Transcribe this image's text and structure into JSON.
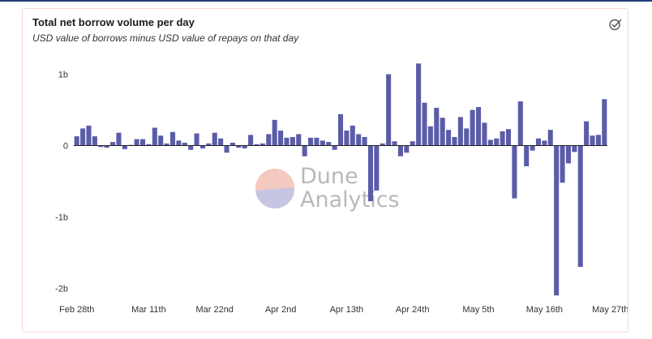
{
  "chart_data": {
    "type": "bar",
    "title": "Total net borrow volume per day",
    "subtitle": "USD value of borrows minus USD value of repays on that day",
    "bar_color": "#5b5ca8",
    "ylim": [
      -2.1,
      1.1
    ],
    "y_ticks": [
      {
        "value": 1,
        "label": "1b"
      },
      {
        "value": 0,
        "label": "0"
      },
      {
        "value": -1,
        "label": "-1b"
      },
      {
        "value": -2,
        "label": "-2b"
      }
    ],
    "x_ticks": [
      {
        "index": 0,
        "label": "Feb 28th"
      },
      {
        "index": 12,
        "label": "Mar 11th"
      },
      {
        "index": 23,
        "label": "Mar 22nd"
      },
      {
        "index": 34,
        "label": "Apr 2nd"
      },
      {
        "index": 45,
        "label": "Apr 13th"
      },
      {
        "index": 56,
        "label": "Apr 24th"
      },
      {
        "index": 67,
        "label": "May 5th"
      },
      {
        "index": 78,
        "label": "May 16th"
      },
      {
        "index": 89,
        "label": "May 27th"
      }
    ],
    "values": [
      0.13,
      0.24,
      0.28,
      0.13,
      -0.02,
      -0.03,
      0.05,
      0.18,
      -0.05,
      0.01,
      0.09,
      0.09,
      0.02,
      0.25,
      0.14,
      0.03,
      0.19,
      0.07,
      0.04,
      -0.06,
      0.17,
      -0.04,
      0.03,
      0.18,
      0.1,
      -0.1,
      0.04,
      -0.03,
      -0.04,
      0.15,
      0.02,
      0.03,
      0.16,
      0.36,
      0.21,
      0.11,
      0.12,
      0.16,
      -0.15,
      0.11,
      0.11,
      0.07,
      0.05,
      -0.06,
      0.44,
      0.21,
      0.28,
      0.16,
      0.12,
      -0.78,
      -0.63,
      0.03,
      1.0,
      0.06,
      -0.15,
      -0.1,
      0.06,
      1.15,
      0.6,
      0.27,
      0.53,
      0.39,
      0.22,
      0.12,
      0.4,
      0.24,
      0.5,
      0.54,
      0.32,
      0.08,
      0.1,
      0.2,
      0.23,
      -0.74,
      0.62,
      -0.29,
      -0.07,
      0.1,
      0.07,
      0.22,
      -2.1,
      -0.52,
      -0.25,
      -0.09,
      -1.7,
      0.34,
      0.14,
      0.15,
      0.65
    ]
  },
  "watermark": {
    "line1": "Dune",
    "line2": "Analytics"
  },
  "icons": {
    "status": "check-circle-icon"
  }
}
